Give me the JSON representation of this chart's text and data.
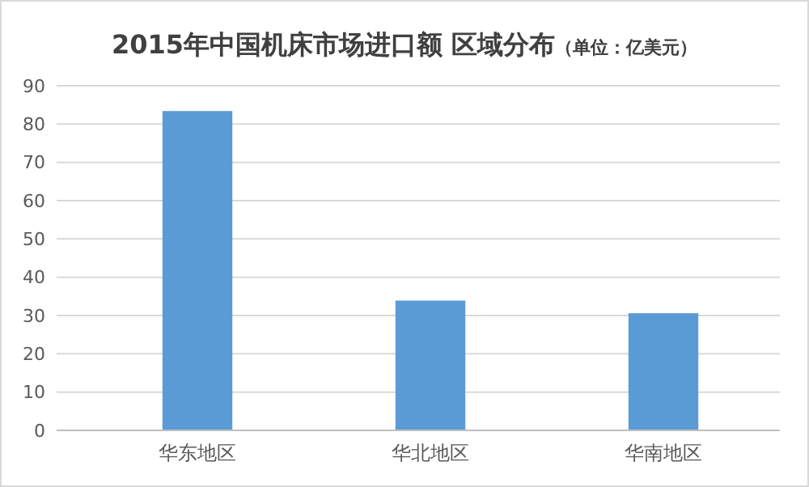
{
  "chart_data": {
    "type": "bar",
    "title": "2015年中国机床市场进口额 区域分布",
    "subtitle": "（单位：亿美元）",
    "categories": [
      "华东地区",
      "华北地区",
      "华南地区"
    ],
    "values": [
      83.4,
      33.9,
      30.6
    ],
    "color": "#5b9bd5",
    "ylim": [
      0,
      90
    ],
    "yticks": [
      0,
      10,
      20,
      30,
      40,
      50,
      60,
      70,
      80,
      90
    ],
    "grid": true
  }
}
